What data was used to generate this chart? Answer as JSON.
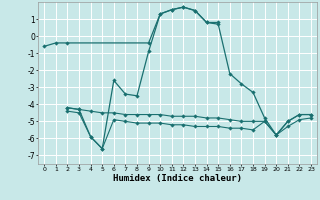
{
  "xlabel": "Humidex (Indice chaleur)",
  "xlim": [
    -0.5,
    23.5
  ],
  "ylim": [
    -7.5,
    2.0
  ],
  "yticks": [
    1,
    0,
    -1,
    -2,
    -3,
    -4,
    -5,
    -6,
    -7
  ],
  "xticks": [
    0,
    1,
    2,
    3,
    4,
    5,
    6,
    7,
    8,
    9,
    10,
    11,
    12,
    13,
    14,
    15,
    16,
    17,
    18,
    19,
    20,
    21,
    22,
    23
  ],
  "bg_color": "#c8e8e8",
  "line_color": "#1a7070",
  "grid_color": "#ffffff",
  "curves": {
    "flat_top": {
      "x": [
        0,
        1,
        2,
        9,
        10,
        11,
        12,
        13,
        14,
        15
      ],
      "y": [
        -0.6,
        -0.4,
        -0.4,
        -0.4,
        1.3,
        1.55,
        1.7,
        1.5,
        0.8,
        0.8
      ]
    },
    "volatile": {
      "x": [
        2,
        3,
        4,
        5,
        6,
        7,
        8,
        9,
        10,
        11,
        12,
        13,
        14,
        15,
        16,
        17,
        18,
        19,
        20,
        21,
        22,
        23
      ],
      "y": [
        -4.2,
        -4.3,
        -5.9,
        -6.6,
        -2.6,
        -3.4,
        -3.5,
        -0.9,
        1.3,
        1.55,
        1.7,
        1.5,
        0.8,
        0.7,
        -2.2,
        -2.8,
        -3.3,
        -4.8,
        -5.8,
        -5.0,
        -4.6,
        -4.6
      ]
    },
    "band_upper": {
      "x": [
        2,
        3,
        4,
        5,
        6,
        7,
        8,
        9,
        10,
        11,
        12,
        13,
        14,
        15,
        16,
        17,
        18,
        19,
        20,
        21,
        22,
        23
      ],
      "y": [
        -4.2,
        -4.3,
        -4.4,
        -4.5,
        -4.5,
        -4.6,
        -4.6,
        -4.6,
        -4.6,
        -4.7,
        -4.7,
        -4.7,
        -4.8,
        -4.8,
        -4.9,
        -5.0,
        -5.0,
        -5.0,
        -5.8,
        -5.0,
        -4.6,
        -4.6
      ]
    },
    "band_lower": {
      "x": [
        2,
        3,
        4,
        5,
        6,
        7,
        8,
        9,
        10,
        11,
        12,
        13,
        14,
        15,
        16,
        17,
        18,
        19,
        20,
        21,
        22,
        23
      ],
      "y": [
        -4.4,
        -4.5,
        -5.9,
        -6.6,
        -4.9,
        -5.0,
        -5.1,
        -5.1,
        -5.1,
        -5.2,
        -5.2,
        -5.3,
        -5.3,
        -5.3,
        -5.4,
        -5.4,
        -5.5,
        -5.0,
        -5.8,
        -5.3,
        -4.9,
        -4.8
      ]
    }
  }
}
